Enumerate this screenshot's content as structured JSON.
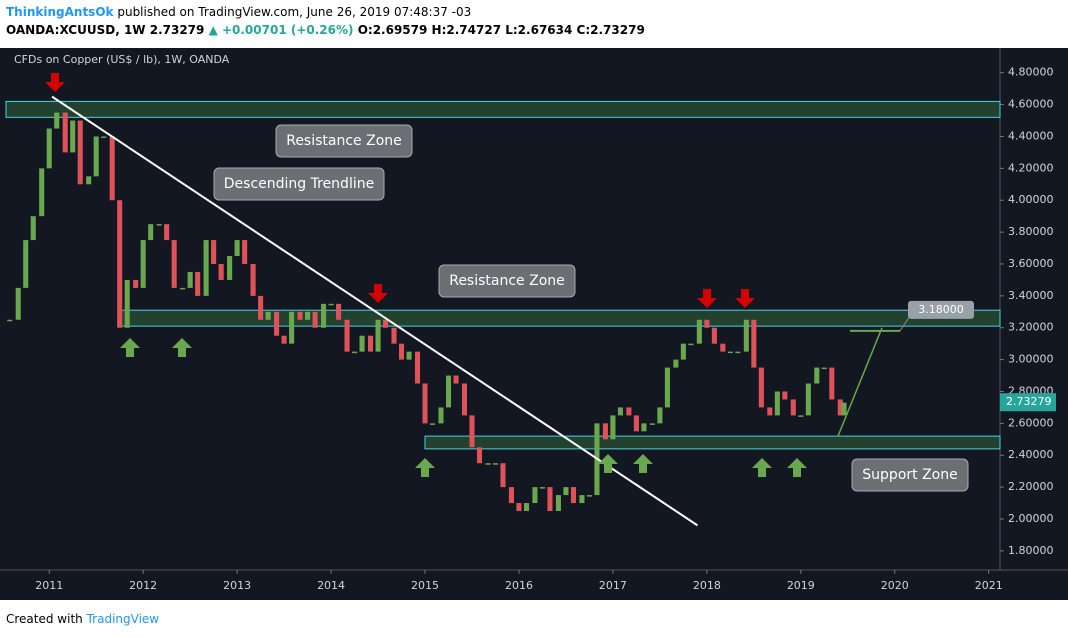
{
  "header": {
    "author": "ThinkingAntsOk",
    "published": "published on TradingView.com, June 26, 2019 07:48:37 -03",
    "symbol": "OANDA:XCUUSD, 1W",
    "last": "2.73279",
    "change": "▲ +0.00701 (+0.26%)",
    "open": "O:2.69579",
    "high": "H:2.74727",
    "low": "L:2.67634",
    "close": "C:2.73279"
  },
  "footer": {
    "created": "Created with",
    "brand": "TradingView"
  },
  "chart_data": {
    "type": "candlestick",
    "title": "CFDs on Copper (US$ / lb), 1W, OANDA",
    "up_color": "#6aa84f",
    "down_color": "#e0525a",
    "x": [
      2010.58,
      2010.67,
      2010.75,
      2010.83,
      2010.92,
      2011.0,
      2011.08,
      2011.17,
      2011.25,
      2011.33,
      2011.42,
      2011.5,
      2011.58,
      2011.67,
      2011.75,
      2011.83,
      2011.92,
      2012.0,
      2012.08,
      2012.17,
      2012.25,
      2012.33,
      2012.42,
      2012.5,
      2012.58,
      2012.67,
      2012.75,
      2012.83,
      2012.92,
      2013.0,
      2013.08,
      2013.17,
      2013.25,
      2013.33,
      2013.42,
      2013.5,
      2013.58,
      2013.67,
      2013.75,
      2013.83,
      2013.92,
      2014.0,
      2014.08,
      2014.17,
      2014.25,
      2014.33,
      2014.42,
      2014.5,
      2014.58,
      2014.67,
      2014.75,
      2014.83,
      2014.92,
      2015.0,
      2015.08,
      2015.17,
      2015.25,
      2015.33,
      2015.42,
      2015.5,
      2015.58,
      2015.67,
      2015.75,
      2015.83,
      2015.92,
      2016.0,
      2016.08,
      2016.17,
      2016.25,
      2016.33,
      2016.42,
      2016.5,
      2016.58,
      2016.67,
      2016.75,
      2016.83,
      2016.92,
      2017.0,
      2017.08,
      2017.17,
      2017.25,
      2017.33,
      2017.42,
      2017.5,
      2017.58,
      2017.67,
      2017.75,
      2017.83,
      2017.92,
      2018.0,
      2018.08,
      2018.17,
      2018.25,
      2018.33,
      2018.42,
      2018.5,
      2018.58,
      2018.67,
      2018.75,
      2018.83,
      2018.92,
      2019.0,
      2019.08,
      2019.17,
      2019.25,
      2019.33,
      2019.42,
      2019.46
    ],
    "values": [
      3.25,
      3.45,
      3.75,
      3.9,
      4.2,
      4.45,
      4.55,
      4.3,
      4.5,
      4.1,
      4.15,
      4.4,
      4.4,
      4.0,
      3.2,
      3.5,
      3.45,
      3.75,
      3.85,
      3.85,
      3.75,
      3.45,
      3.45,
      3.55,
      3.4,
      3.75,
      3.6,
      3.5,
      3.65,
      3.75,
      3.6,
      3.4,
      3.25,
      3.3,
      3.15,
      3.1,
      3.3,
      3.25,
      3.3,
      3.2,
      3.35,
      3.35,
      3.25,
      3.05,
      3.05,
      3.15,
      3.05,
      3.25,
      3.2,
      3.1,
      3.0,
      3.05,
      2.85,
      2.6,
      2.6,
      2.7,
      2.9,
      2.85,
      2.65,
      2.45,
      2.35,
      2.35,
      2.35,
      2.2,
      2.1,
      2.05,
      2.1,
      2.2,
      2.2,
      2.05,
      2.15,
      2.2,
      2.1,
      2.15,
      2.15,
      2.6,
      2.5,
      2.65,
      2.7,
      2.65,
      2.55,
      2.6,
      2.6,
      2.7,
      2.95,
      3.0,
      3.1,
      3.1,
      3.25,
      3.2,
      3.1,
      3.05,
      3.05,
      3.05,
      3.25,
      2.95,
      2.7,
      2.65,
      2.8,
      2.75,
      2.65,
      2.65,
      2.85,
      2.95,
      2.95,
      2.75,
      2.65,
      2.73
    ],
    "xlim": [
      2010.54,
      2021.12
    ],
    "xticks": [
      2011,
      2012,
      2013,
      2014,
      2015,
      2016,
      2017,
      2018,
      2019,
      2020,
      2021
    ],
    "ylim": [
      1.68,
      4.93
    ],
    "yticks": [
      {
        "value": 1.8,
        "label": "1.80000"
      },
      {
        "value": 2.0,
        "label": "2.00000"
      },
      {
        "value": 2.2,
        "label": "2.20000"
      },
      {
        "value": 2.4,
        "label": "2.40000"
      },
      {
        "value": 2.6,
        "label": "2.60000"
      },
      {
        "value": 2.8,
        "label": "2.80000"
      },
      {
        "value": 3.0,
        "label": "3.00000"
      },
      {
        "value": 3.2,
        "label": "3.20000"
      },
      {
        "value": 3.4,
        "label": "3.40000"
      },
      {
        "value": 3.6,
        "label": "3.60000"
      },
      {
        "value": 3.8,
        "label": "3.80000"
      },
      {
        "value": 4.0,
        "label": "4.00000"
      },
      {
        "value": 4.2,
        "label": "4.20000"
      },
      {
        "value": 4.4,
        "label": "4.40000"
      },
      {
        "value": 4.6,
        "label": "4.60000"
      },
      {
        "value": 4.8,
        "label": "4.80000"
      }
    ],
    "zones": [
      {
        "label": "Resistance Zone",
        "range": [
          4.52,
          4.62
        ]
      },
      {
        "label": "Resistance Zone",
        "range": [
          3.21,
          3.31
        ]
      },
      {
        "label": "Support Zone",
        "range": [
          2.44,
          2.52
        ]
      }
    ],
    "trendline": {
      "label": "Descending Trendline",
      "x": [
        2011.03,
        2017.9
      ],
      "y": [
        4.65,
        1.96
      ]
    },
    "target": {
      "value": 3.18,
      "label": "3.18000"
    },
    "last_price": {
      "value": 2.73279,
      "label": "2.73279"
    }
  }
}
